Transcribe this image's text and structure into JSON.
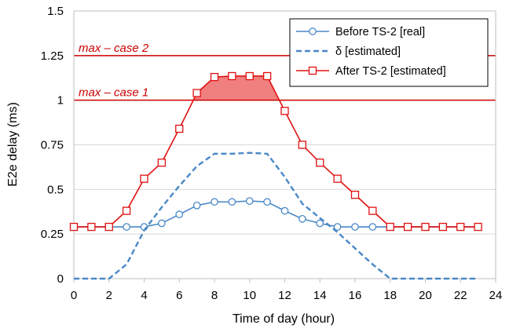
{
  "chart_data": {
    "type": "line",
    "title": "",
    "xlabel": "Time of day (hour)",
    "ylabel": "E2e delay (ms)",
    "xlim": [
      0,
      24
    ],
    "ylim": [
      0,
      1.5
    ],
    "xticks": [
      "0",
      "2",
      "4",
      "6",
      "8",
      "10",
      "12",
      "14",
      "16",
      "18",
      "20",
      "22",
      "24"
    ],
    "yticks": [
      "0",
      "0.25",
      "0.5",
      "0.75",
      "1",
      "1.25",
      "1.5"
    ],
    "grid": "horizontal",
    "legend_position": "top-right",
    "annotations": [
      {
        "text": "max – case 2",
        "y": 1.25,
        "color": "#cc0000"
      },
      {
        "text": "max – case 1",
        "y": 1.0,
        "color": "#cc0000"
      }
    ],
    "series": [
      {
        "name": "Before TS-2 [real]",
        "style": "solid-circle",
        "color": "#4a88c7",
        "x": [
          0,
          1,
          2,
          3,
          4,
          5,
          6,
          7,
          8,
          9,
          10,
          11,
          12,
          13,
          14,
          15,
          16,
          17,
          18,
          19,
          20,
          21,
          22,
          23
        ],
        "values": [
          0.29,
          0.29,
          0.29,
          0.29,
          0.29,
          0.31,
          0.36,
          0.41,
          0.43,
          0.43,
          0.435,
          0.43,
          0.38,
          0.335,
          0.31,
          0.29,
          0.29,
          0.29,
          0.29,
          0.29,
          0.29,
          0.29,
          0.29,
          0.29
        ]
      },
      {
        "name": "δ [estimated]",
        "style": "dashed",
        "color": "#4a88c7",
        "x": [
          0,
          1,
          2,
          3,
          4,
          5,
          6,
          7,
          8,
          9,
          10,
          11,
          12,
          13,
          14,
          15,
          16,
          17,
          18,
          19,
          20,
          21,
          22,
          23
        ],
        "values": [
          0,
          0,
          0,
          0.08,
          0.27,
          0.4,
          0.52,
          0.63,
          0.7,
          0.7,
          0.705,
          0.7,
          0.57,
          0.42,
          0.34,
          0.26,
          0.17,
          0.08,
          0,
          0,
          0,
          0,
          0,
          0
        ]
      },
      {
        "name": "After TS-2 [estimated]",
        "style": "solid-square",
        "color": "#e01010",
        "x": [
          0,
          1,
          2,
          3,
          4,
          5,
          6,
          7,
          8,
          9,
          10,
          11,
          12,
          13,
          14,
          15,
          16,
          17,
          18,
          19,
          20,
          21,
          22,
          23
        ],
        "values": [
          0.29,
          0.29,
          0.29,
          0.38,
          0.56,
          0.65,
          0.84,
          1.04,
          1.13,
          1.135,
          1.135,
          1.135,
          0.94,
          0.75,
          0.65,
          0.56,
          0.47,
          0.38,
          0.29,
          0.29,
          0.29,
          0.29,
          0.29,
          0.29
        ]
      }
    ],
    "shaded_region": {
      "above": 1.0,
      "series": "After TS-2 [estimated]",
      "color": "#f08080"
    }
  }
}
